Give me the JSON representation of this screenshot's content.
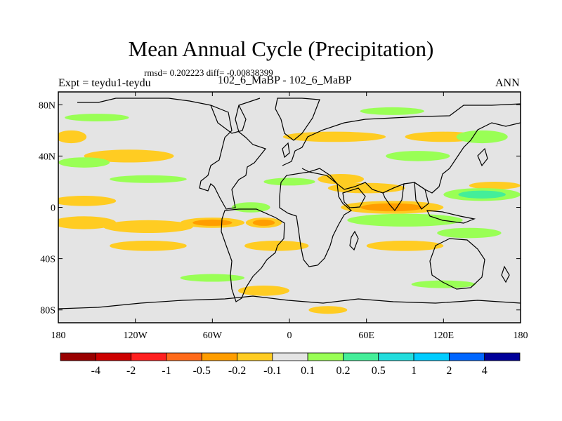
{
  "header": {
    "title": "Mean Annual Cycle (Precipitation)",
    "stats": "rmsd= 0.202223 diff= -0.00838399",
    "subtitle": "102_6_MaBP - 102_6_MaBP",
    "experiment": "Expt = teydu1-teydu",
    "season": "ANN"
  },
  "chart_data": {
    "type": "heatmap",
    "title": "Mean Annual Cycle (Precipitation)",
    "subtitle": "102_6_MaBP - 102_6_MaBP",
    "xlabel": "",
    "ylabel": "",
    "xlim": [
      -180,
      180
    ],
    "ylim": [
      -90,
      90
    ],
    "x_ticks": [
      {
        "value": -180,
        "label": "180"
      },
      {
        "value": -120,
        "label": "120W"
      },
      {
        "value": -60,
        "label": "60W"
      },
      {
        "value": 0,
        "label": "0"
      },
      {
        "value": 60,
        "label": "60E"
      },
      {
        "value": 120,
        "label": "120E"
      },
      {
        "value": 180,
        "label": "180"
      }
    ],
    "y_ticks": [
      {
        "value": 80,
        "label": "80N"
      },
      {
        "value": 40,
        "label": "40N"
      },
      {
        "value": 0,
        "label": "0"
      },
      {
        "value": -40,
        "label": "40S"
      },
      {
        "value": -80,
        "label": "80S"
      }
    ],
    "colorbar": {
      "colors": [
        "#990000",
        "#cc0000",
        "#ff2020",
        "#ff6a1a",
        "#ff9d00",
        "#ffcc22",
        "#e4e4e4",
        "#99ff55",
        "#44ee99",
        "#22dddd",
        "#00ccff",
        "#0066ff",
        "#000099"
      ],
      "labels": [
        "-4",
        "-2",
        "-1",
        "-0.5",
        "-0.2",
        "-0.1",
        "0.1",
        "0.2",
        "0.5",
        "1",
        "2",
        "4"
      ]
    },
    "anomaly_regions": [
      {
        "lon": -160,
        "lat": 5,
        "rlon": 25,
        "rlat": 4,
        "level": -1
      },
      {
        "lon": -110,
        "lat": -15,
        "rlon": 35,
        "rlat": 5,
        "level": -1
      },
      {
        "lon": -60,
        "lat": -12,
        "rlon": 25,
        "rlat": 4,
        "level": -2
      },
      {
        "lon": -20,
        "lat": -12,
        "rlon": 14,
        "rlat": 4,
        "level": -2
      },
      {
        "lon": -160,
        "lat": -12,
        "rlon": 25,
        "rlat": 5,
        "level": -1
      },
      {
        "lon": 80,
        "lat": 0,
        "rlon": 40,
        "rlat": 5,
        "level": -2
      },
      {
        "lon": 60,
        "lat": 15,
        "rlon": 30,
        "rlat": 4,
        "level": -1
      },
      {
        "lon": 40,
        "lat": 22,
        "rlon": 18,
        "rlat": 4,
        "level": -1
      },
      {
        "lon": 160,
        "lat": 17,
        "rlon": 20,
        "rlat": 3,
        "level": -1
      },
      {
        "lon": -125,
        "lat": 40,
        "rlon": 35,
        "rlat": 5,
        "level": -1
      },
      {
        "lon": -170,
        "lat": 55,
        "rlon": 12,
        "rlat": 5,
        "level": -1
      },
      {
        "lon": 35,
        "lat": 55,
        "rlon": 40,
        "rlat": 4,
        "level": -1
      },
      {
        "lon": 120,
        "lat": 55,
        "rlon": 30,
        "rlat": 4,
        "level": -1
      },
      {
        "lon": -110,
        "lat": -30,
        "rlon": 30,
        "rlat": 4,
        "level": -1
      },
      {
        "lon": -10,
        "lat": -30,
        "rlon": 25,
        "rlat": 4,
        "level": -1
      },
      {
        "lon": 90,
        "lat": -30,
        "rlon": 30,
        "rlat": 4,
        "level": -1
      },
      {
        "lon": -20,
        "lat": -65,
        "rlon": 20,
        "rlat": 4,
        "level": -1
      },
      {
        "lon": 30,
        "lat": -80,
        "rlon": 15,
        "rlat": 3,
        "level": -1
      },
      {
        "lon": -160,
        "lat": 35,
        "rlon": 20,
        "rlat": 4,
        "level": 1
      },
      {
        "lon": -110,
        "lat": 22,
        "rlon": 30,
        "rlat": 3,
        "level": 1
      },
      {
        "lon": 150,
        "lat": 10,
        "rlon": 30,
        "rlat": 5,
        "level": 2
      },
      {
        "lon": 90,
        "lat": -10,
        "rlon": 45,
        "rlat": 5,
        "level": 1
      },
      {
        "lon": 140,
        "lat": -20,
        "rlon": 25,
        "rlat": 4,
        "level": 1
      },
      {
        "lon": -30,
        "lat": 0,
        "rlon": 15,
        "rlat": 4,
        "level": 1
      },
      {
        "lon": 100,
        "lat": 40,
        "rlon": 25,
        "rlat": 4,
        "level": 1
      },
      {
        "lon": 150,
        "lat": 55,
        "rlon": 20,
        "rlat": 5,
        "level": 1
      },
      {
        "lon": -60,
        "lat": -55,
        "rlon": 25,
        "rlat": 3,
        "level": 1
      },
      {
        "lon": 120,
        "lat": -60,
        "rlon": 25,
        "rlat": 3,
        "level": 1
      },
      {
        "lon": 0,
        "lat": 20,
        "rlon": 20,
        "rlat": 3,
        "level": 1
      },
      {
        "lon": -150,
        "lat": 70,
        "rlon": 25,
        "rlat": 3,
        "level": 1
      },
      {
        "lon": 80,
        "lat": 75,
        "rlon": 25,
        "rlat": 3,
        "level": 1
      }
    ]
  }
}
